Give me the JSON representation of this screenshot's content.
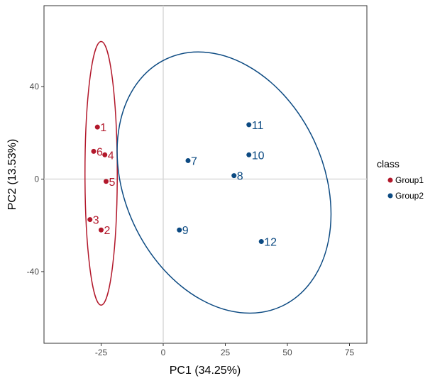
{
  "chart_data": {
    "type": "scatter",
    "xlabel": "PC1 (34.25%)",
    "ylabel": "PC2 (13.53%)",
    "xlim": [
      -48,
      82
    ],
    "ylim": [
      -71,
      75
    ],
    "x_ticks": [
      -25,
      0,
      25,
      50,
      75
    ],
    "x_tick_labels": [
      "-25",
      "0",
      "25",
      "50",
      "75"
    ],
    "y_ticks": [
      -40,
      0,
      40
    ],
    "y_tick_labels": [
      "-40",
      "0",
      "40"
    ],
    "grid": false,
    "zero_lines": true,
    "legend": {
      "title": "class",
      "placement": "right",
      "entries": [
        {
          "label": "Group1",
          "color": "#b2182b"
        },
        {
          "label": "Group2",
          "color": "#0c4a82"
        }
      ]
    },
    "series": [
      {
        "name": "Group1",
        "color": "#b2182b",
        "points": [
          {
            "label": "1",
            "x": -26.5,
            "y": 22.5
          },
          {
            "label": "2",
            "x": -25,
            "y": -22
          },
          {
            "label": "3",
            "x": -29.5,
            "y": -17.5
          },
          {
            "label": "4",
            "x": -23.5,
            "y": 10.5
          },
          {
            "label": "5",
            "x": -23,
            "y": -1
          },
          {
            "label": "6",
            "x": -28,
            "y": 12
          }
        ],
        "ellipse": {
          "cx": -25,
          "cy": 2.5,
          "rx": 6.5,
          "ry": 57,
          "angle": 0
        }
      },
      {
        "name": "Group2",
        "color": "#0c4a82",
        "points": [
          {
            "label": "7",
            "x": 10,
            "y": 8
          },
          {
            "label": "8",
            "x": 28.5,
            "y": 1.5
          },
          {
            "label": "9",
            "x": 6.5,
            "y": -22
          },
          {
            "label": "10",
            "x": 34.5,
            "y": 10.5
          },
          {
            "label": "11",
            "x": 34.5,
            "y": 23.5
          },
          {
            "label": "12",
            "x": 39.5,
            "y": -27
          }
        ],
        "ellipse": {
          "cx": 24.5,
          "cy": -1.5,
          "rx": 40,
          "ry": 59,
          "angle": 25
        }
      }
    ]
  }
}
